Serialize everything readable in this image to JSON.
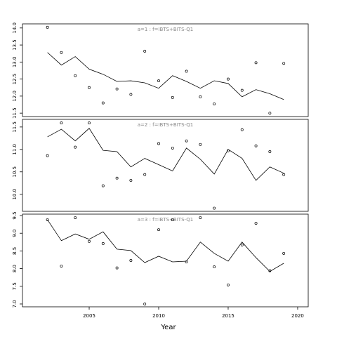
{
  "x_axis": {
    "label": "Year",
    "xlim": [
      2000.2,
      2020.76
    ],
    "xticks": [
      2005,
      2010,
      2015,
      2020
    ]
  },
  "chart_data": [
    {
      "type": "line",
      "title": "a=1  :  f=IBTS+BITS-Q1",
      "x": [
        2002,
        2003,
        2004,
        2005,
        2006,
        2007,
        2008,
        2009,
        2010,
        2011,
        2012,
        2013,
        2014,
        2015,
        2016,
        2017,
        2018,
        2019
      ],
      "ylim": [
        11.4,
        14.12
      ],
      "yticks": [
        {
          "value": 14,
          "label": "14.0"
        },
        13.5,
        {
          "value": 13,
          "label": "13.0"
        },
        12.5,
        {
          "value": 12,
          "label": "12.0"
        },
        11.5
      ],
      "series": [
        {
          "style": "points",
          "color": "#000000",
          "values": [
            14.02,
            13.28,
            12.6,
            12.25,
            11.8,
            12.21,
            12.05,
            13.32,
            12.45,
            11.96,
            12.73,
            11.98,
            11.77,
            12.5,
            12.17,
            12.98,
            11.5,
            12.96
          ]
        },
        {
          "style": "line",
          "color": "#000000",
          "values": [
            13.28,
            12.91,
            13.16,
            12.79,
            12.64,
            12.43,
            12.45,
            12.39,
            12.23,
            12.6,
            12.43,
            12.23,
            12.45,
            12.37,
            11.98,
            12.19,
            12.07,
            11.9
          ]
        }
      ]
    },
    {
      "type": "line",
      "title": "a=2  :  f=IBTS+BITS-Q1",
      "x": [
        2002,
        2003,
        2004,
        2005,
        2006,
        2007,
        2008,
        2009,
        2010,
        2011,
        2012,
        2013,
        2014,
        2015,
        2016,
        2017,
        2018,
        2019
      ],
      "ylim": [
        9.62,
        11.67
      ],
      "yticks": [
        11.5,
        {
          "value": 11,
          "label": "11.0"
        },
        10.5,
        {
          "value": 10,
          "label": "10.0"
        }
      ],
      "series": [
        {
          "style": "points",
          "color": "#000000",
          "values": [
            10.86,
            11.59,
            11.05,
            11.59,
            10.19,
            10.36,
            10.31,
            10.44,
            11.13,
            11.03,
            11.19,
            11.11,
            9.69,
            10.97,
            11.44,
            11.08,
            10.95,
            10.44
          ]
        },
        {
          "style": "line",
          "color": "#000000",
          "values": [
            11.28,
            11.45,
            11.19,
            11.47,
            10.98,
            10.95,
            10.61,
            10.8,
            10.66,
            10.52,
            11.03,
            10.78,
            10.45,
            11.0,
            10.8,
            10.31,
            10.61,
            10.47
          ]
        }
      ]
    },
    {
      "type": "line",
      "title": "a=3  :  f=IBTS+BITS-Q1",
      "x": [
        2002,
        2003,
        2004,
        2005,
        2006,
        2007,
        2008,
        2009,
        2010,
        2011,
        2012,
        2013,
        2014,
        2015,
        2016,
        2017,
        2018,
        2019
      ],
      "ylim": [
        6.92,
        9.54
      ],
      "yticks": [
        9.5,
        {
          "value": 9,
          "label": "9.0"
        },
        8.5,
        {
          "value": 8,
          "label": "8.0"
        },
        7.5,
        {
          "value": 7,
          "label": "7.0"
        }
      ],
      "series": [
        {
          "style": "points",
          "color": "#000000",
          "values": [
            9.38,
            8.07,
            9.44,
            8.77,
            8.71,
            8.02,
            8.23,
            7.0,
            9.1,
            9.38,
            8.19,
            9.44,
            8.05,
            7.54,
            8.67,
            9.28,
            7.94,
            8.43
          ]
        },
        {
          "style": "line",
          "color": "#000000",
          "values": [
            9.38,
            8.79,
            8.98,
            8.83,
            9.04,
            8.55,
            8.51,
            8.17,
            8.35,
            8.19,
            8.21,
            8.75,
            8.43,
            8.21,
            8.75,
            8.31,
            7.92,
            8.15
          ]
        }
      ]
    }
  ]
}
